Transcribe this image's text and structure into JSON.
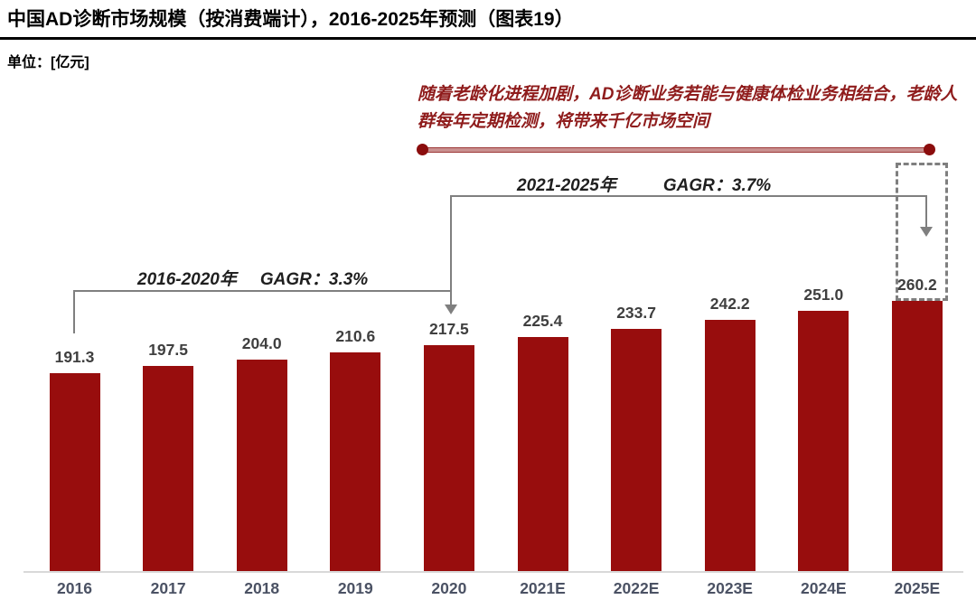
{
  "header": {
    "title": "中国AD诊断市场规模（按消费端计），2016-2025年预测（图表19）",
    "unit_label": "单位：[亿元]"
  },
  "annotation": {
    "text": "随着老龄化进程加剧，AD诊断业务若能与健康体检业务相结合，老龄人群每年定期检测，将带来千亿市场空间"
  },
  "cagr": {
    "period1": {
      "period": "2016-2020年",
      "rate": "GAGR：3.3%"
    },
    "period2": {
      "period": "2021-2025年",
      "rate": "GAGR：3.7%"
    }
  },
  "chart_data": {
    "type": "bar",
    "title": "中国AD诊断市场规模（按消费端计），2016-2025年预测（图表19）",
    "unit": "亿元",
    "categories": [
      "2016",
      "2017",
      "2018",
      "2019",
      "2020",
      "2021E",
      "2022E",
      "2023E",
      "2024E",
      "2025E"
    ],
    "values": [
      191.3,
      197.5,
      204.0,
      210.6,
      217.5,
      225.4,
      233.7,
      242.2,
      251.0,
      260.2
    ],
    "ylim": [
      0,
      280
    ],
    "grid": false,
    "legend": null,
    "bar_color": "#980d0d",
    "highlighted_category": "2025E",
    "annotations": [
      {
        "text": "2016-2020年 GAGR：3.3%",
        "span": [
          "2016",
          "2020"
        ]
      },
      {
        "text": "2021-2025年 GAGR：3.7%",
        "span": [
          "2021E",
          "2025E"
        ]
      },
      {
        "text": "随着老龄化进程加剧，AD诊断业务若能与健康体检业务相结合，老龄人群每年定期检测，将带来千亿市场空间"
      }
    ]
  },
  "colors": {
    "bar": "#980d0d",
    "annotation_red": "#8f1c1c",
    "connector_gray": "#7f7f7f",
    "axis_line": "#d9d9d9",
    "value_label": "#3f3f3f",
    "tick_label": "#4b5264",
    "timeline_dot": "#8b0d0d"
  }
}
